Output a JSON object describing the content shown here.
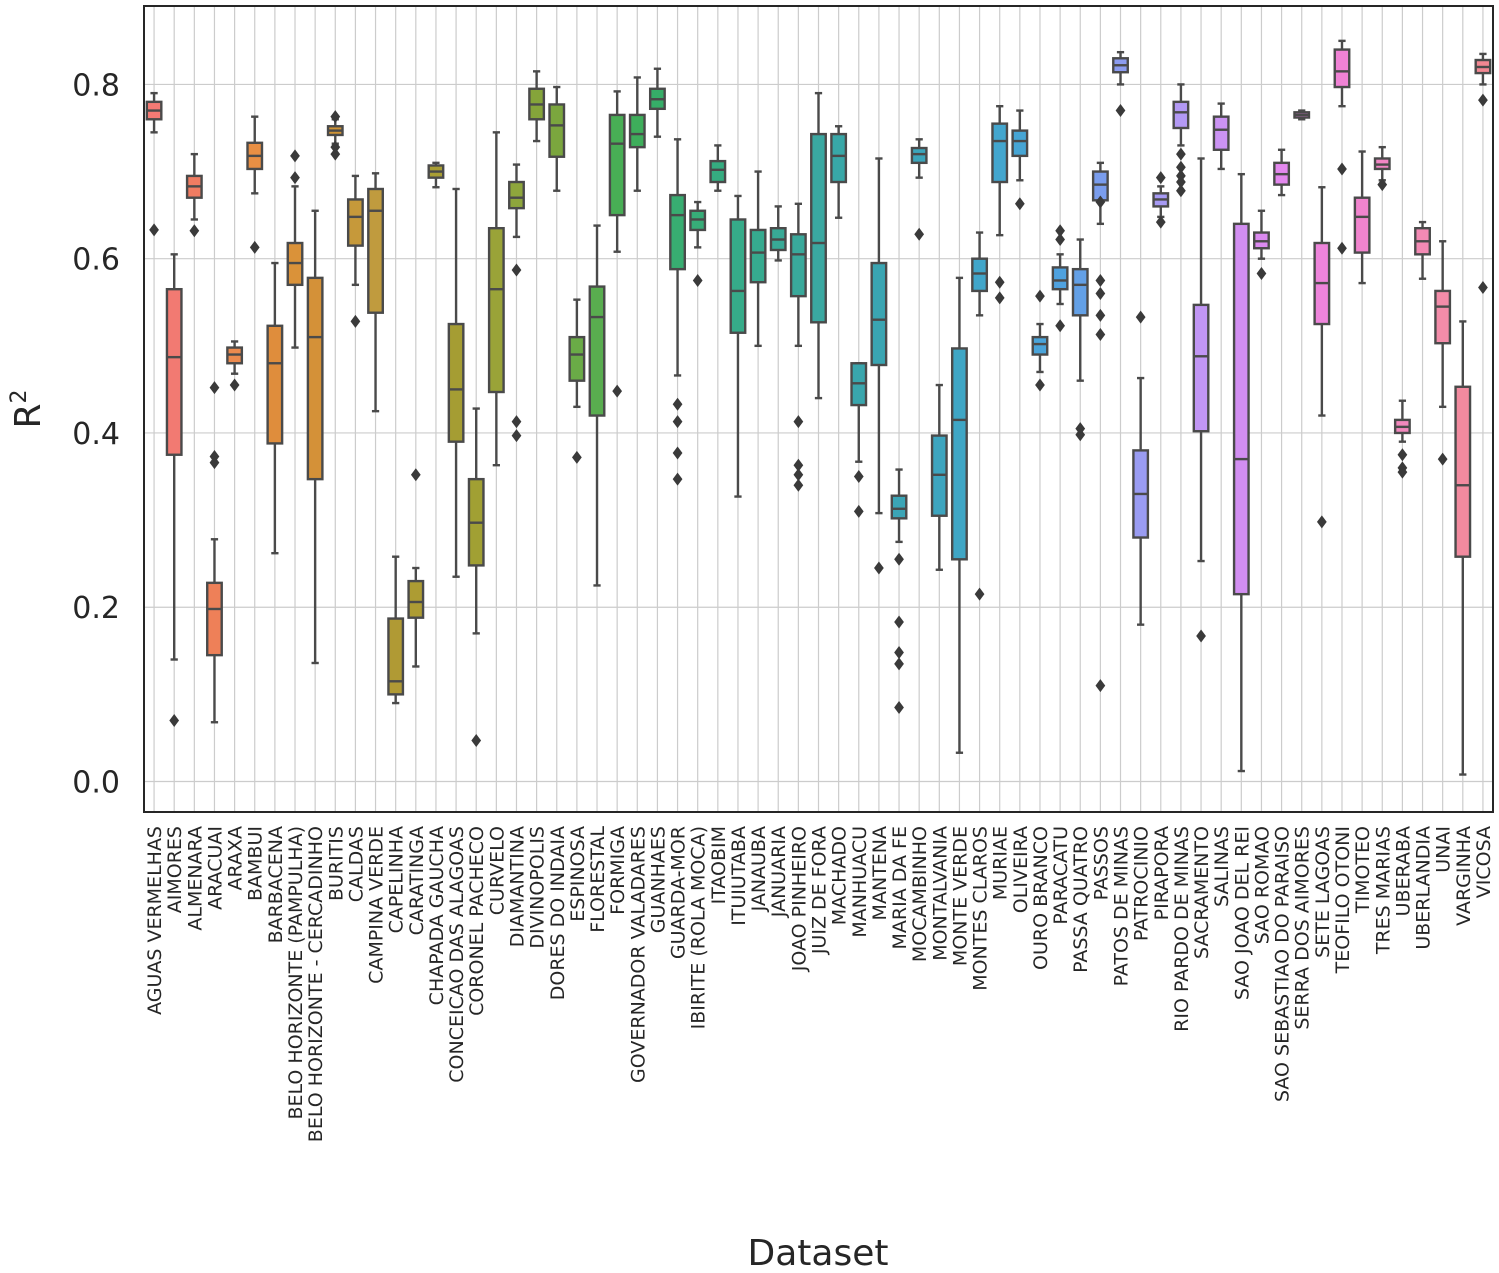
{
  "chart_data": {
    "type": "box",
    "title": "",
    "xlabel": "Dataset",
    "ylabel": "R",
    "ylabel_superscript": "2",
    "ylim": [
      -0.035,
      0.89
    ],
    "yticks": [
      "0.0",
      "0.2",
      "0.4",
      "0.6",
      "0.8"
    ],
    "grid": true,
    "categories": [
      {
        "name": "AGUAS VERMELHAS",
        "color": "#f47a74",
        "q1": 0.76,
        "median": 0.77,
        "q3": 0.78,
        "whislo": 0.745,
        "whishi": 0.79,
        "fliers": [
          0.633
        ]
      },
      {
        "name": "AIMORES",
        "color": "#f27a72",
        "q1": 0.375,
        "median": 0.487,
        "q3": 0.565,
        "whislo": 0.14,
        "whishi": 0.605,
        "fliers": [
          0.07
        ]
      },
      {
        "name": "ALMENARA",
        "color": "#f07c62",
        "q1": 0.67,
        "median": 0.683,
        "q3": 0.695,
        "whislo": 0.645,
        "whishi": 0.72,
        "fliers": [
          0.632
        ]
      },
      {
        "name": "ARACUAI",
        "color": "#ee8058",
        "q1": 0.145,
        "median": 0.198,
        "q3": 0.228,
        "whislo": 0.068,
        "whishi": 0.278,
        "fliers": [
          0.452,
          0.373,
          0.366
        ]
      },
      {
        "name": "ARAXA",
        "color": "#ec8a4e",
        "q1": 0.48,
        "median": 0.49,
        "q3": 0.498,
        "whislo": 0.468,
        "whishi": 0.505,
        "fliers": [
          0.455
        ]
      },
      {
        "name": "BAMBUI",
        "color": "#e88f44",
        "q1": 0.703,
        "median": 0.718,
        "q3": 0.733,
        "whislo": 0.675,
        "whishi": 0.763,
        "fliers": [
          0.613
        ]
      },
      {
        "name": "BARBACENA",
        "color": "#df8d3c",
        "q1": 0.388,
        "median": 0.48,
        "q3": 0.523,
        "whislo": 0.262,
        "whishi": 0.595,
        "fliers": []
      },
      {
        "name": "BELO HORIZONTE (PAMPULHA)",
        "color": "#da9239",
        "q1": 0.57,
        "median": 0.595,
        "q3": 0.618,
        "whislo": 0.498,
        "whishi": 0.683,
        "fliers": [
          0.718,
          0.693
        ]
      },
      {
        "name": "BELO HORIZONTE - CERCADINHO",
        "color": "#d49138",
        "q1": 0.347,
        "median": 0.51,
        "q3": 0.578,
        "whislo": 0.136,
        "whishi": 0.655,
        "fliers": []
      },
      {
        "name": "BURITIS",
        "color": "#cf9435",
        "q1": 0.742,
        "median": 0.747,
        "q3": 0.752,
        "whislo": 0.732,
        "whishi": 0.76,
        "fliers": [
          0.763,
          0.728,
          0.72
        ]
      },
      {
        "name": "CALDAS",
        "color": "#c6993a",
        "q1": 0.615,
        "median": 0.648,
        "q3": 0.668,
        "whislo": 0.57,
        "whishi": 0.695,
        "fliers": [
          0.528
        ]
      },
      {
        "name": "CAMPINA VERDE",
        "color": "#c09b3e",
        "q1": 0.538,
        "median": 0.655,
        "q3": 0.68,
        "whislo": 0.425,
        "whishi": 0.698,
        "fliers": []
      },
      {
        "name": "CAPELINHA",
        "color": "#b09a34",
        "q1": 0.1,
        "median": 0.115,
        "q3": 0.187,
        "whislo": 0.09,
        "whishi": 0.258,
        "fliers": []
      },
      {
        "name": "CARATINGA",
        "color": "#ad9c33",
        "q1": 0.188,
        "median": 0.206,
        "q3": 0.23,
        "whislo": 0.132,
        "whishi": 0.245,
        "fliers": [
          0.352
        ]
      },
      {
        "name": "CHAPADA GAUCHA",
        "color": "#a99e34",
        "q1": 0.693,
        "median": 0.7,
        "q3": 0.707,
        "whislo": 0.682,
        "whishi": 0.71,
        "fliers": []
      },
      {
        "name": "CONCEICAO DAS ALAGOAS",
        "color": "#a59d33",
        "q1": 0.39,
        "median": 0.45,
        "q3": 0.525,
        "whislo": 0.235,
        "whishi": 0.68,
        "fliers": []
      },
      {
        "name": "CORONEL PACHECO",
        "color": "#a1a033",
        "q1": 0.248,
        "median": 0.297,
        "q3": 0.347,
        "whislo": 0.17,
        "whishi": 0.428,
        "fliers": [
          0.047
        ]
      },
      {
        "name": "CURVELO",
        "color": "#9aa338",
        "q1": 0.447,
        "median": 0.565,
        "q3": 0.635,
        "whislo": 0.363,
        "whishi": 0.745,
        "fliers": []
      },
      {
        "name": "DIAMANTINA",
        "color": "#8ea63c",
        "q1": 0.658,
        "median": 0.67,
        "q3": 0.688,
        "whislo": 0.625,
        "whishi": 0.708,
        "fliers": [
          0.587,
          0.413,
          0.397
        ]
      },
      {
        "name": "DIVINOPOLIS",
        "color": "#85a43a",
        "q1": 0.76,
        "median": 0.777,
        "q3": 0.795,
        "whislo": 0.735,
        "whishi": 0.815,
        "fliers": []
      },
      {
        "name": "DORES DO INDAIA",
        "color": "#7ba63e",
        "q1": 0.717,
        "median": 0.753,
        "q3": 0.777,
        "whislo": 0.678,
        "whishi": 0.797,
        "fliers": []
      },
      {
        "name": "ESPINOSA",
        "color": "#6aab47",
        "q1": 0.46,
        "median": 0.49,
        "q3": 0.51,
        "whislo": 0.43,
        "whishi": 0.553,
        "fliers": [
          0.372
        ]
      },
      {
        "name": "FLORESTAL",
        "color": "#59ad4f",
        "q1": 0.42,
        "median": 0.533,
        "q3": 0.568,
        "whislo": 0.225,
        "whishi": 0.638,
        "fliers": []
      },
      {
        "name": "FORMIGA",
        "color": "#48ae55",
        "q1": 0.65,
        "median": 0.732,
        "q3": 0.765,
        "whislo": 0.608,
        "whishi": 0.792,
        "fliers": [
          0.448
        ]
      },
      {
        "name": "GOVERNADOR VALADARES",
        "color": "#3eae5b",
        "q1": 0.728,
        "median": 0.743,
        "q3": 0.765,
        "whislo": 0.678,
        "whishi": 0.808,
        "fliers": []
      },
      {
        "name": "GUANHAES",
        "color": "#36ad68",
        "q1": 0.772,
        "median": 0.783,
        "q3": 0.795,
        "whislo": 0.74,
        "whishi": 0.818,
        "fliers": []
      },
      {
        "name": "GUARDA-MOR",
        "color": "#38ad71",
        "q1": 0.588,
        "median": 0.65,
        "q3": 0.673,
        "whislo": 0.466,
        "whishi": 0.737,
        "fliers": [
          0.433,
          0.413,
          0.377,
          0.347
        ]
      },
      {
        "name": "IBIRITE (ROLA MOCA)",
        "color": "#37ac78",
        "q1": 0.633,
        "median": 0.645,
        "q3": 0.655,
        "whislo": 0.613,
        "whishi": 0.665,
        "fliers": [
          0.575
        ]
      },
      {
        "name": "ITAOBIM",
        "color": "#35ac80",
        "q1": 0.688,
        "median": 0.702,
        "q3": 0.712,
        "whislo": 0.678,
        "whishi": 0.73,
        "fliers": []
      },
      {
        "name": "ITUIUTABA",
        "color": "#36ab89",
        "q1": 0.515,
        "median": 0.563,
        "q3": 0.645,
        "whislo": 0.327,
        "whishi": 0.672,
        "fliers": []
      },
      {
        "name": "JANAUBA",
        "color": "#36aa8f",
        "q1": 0.573,
        "median": 0.607,
        "q3": 0.633,
        "whislo": 0.5,
        "whishi": 0.7,
        "fliers": []
      },
      {
        "name": "JANUARIA",
        "color": "#38a996",
        "q1": 0.61,
        "median": 0.622,
        "q3": 0.635,
        "whislo": 0.598,
        "whishi": 0.66,
        "fliers": []
      },
      {
        "name": "JOAO PINHEIRO",
        "color": "#39a99b",
        "q1": 0.557,
        "median": 0.605,
        "q3": 0.628,
        "whislo": 0.5,
        "whishi": 0.663,
        "fliers": [
          0.413,
          0.363,
          0.352,
          0.34
        ]
      },
      {
        "name": "JUIZ DE FORA",
        "color": "#3aa8a1",
        "q1": 0.527,
        "median": 0.618,
        "q3": 0.743,
        "whislo": 0.44,
        "whishi": 0.79,
        "fliers": []
      },
      {
        "name": "MACHADO",
        "color": "#38a7a7",
        "q1": 0.688,
        "median": 0.718,
        "q3": 0.743,
        "whislo": 0.647,
        "whishi": 0.752,
        "fliers": []
      },
      {
        "name": "MANHUACU",
        "color": "#39a6ad",
        "q1": 0.432,
        "median": 0.457,
        "q3": 0.48,
        "whislo": 0.367,
        "whishi": 0.48,
        "fliers": [
          0.35,
          0.31
        ]
      },
      {
        "name": "MANTENA",
        "color": "#3aa5b2",
        "q1": 0.478,
        "median": 0.53,
        "q3": 0.595,
        "whislo": 0.308,
        "whishi": 0.715,
        "fliers": [
          0.245
        ]
      },
      {
        "name": "MARIA DA FE",
        "color": "#3ba5b6",
        "q1": 0.302,
        "median": 0.313,
        "q3": 0.328,
        "whislo": 0.275,
        "whishi": 0.358,
        "fliers": [
          0.255,
          0.183,
          0.148,
          0.135,
          0.085
        ]
      },
      {
        "name": "MOCAMBINHO",
        "color": "#3ca5bb",
        "q1": 0.71,
        "median": 0.72,
        "q3": 0.727,
        "whislo": 0.693,
        "whishi": 0.737,
        "fliers": [
          0.628
        ]
      },
      {
        "name": "MONTALVANIA",
        "color": "#3da5bf",
        "q1": 0.305,
        "median": 0.352,
        "q3": 0.397,
        "whislo": 0.243,
        "whishi": 0.455,
        "fliers": []
      },
      {
        "name": "MONTE VERDE",
        "color": "#3fa6c5",
        "q1": 0.255,
        "median": 0.415,
        "q3": 0.497,
        "whislo": 0.033,
        "whishi": 0.578,
        "fliers": []
      },
      {
        "name": "MONTES CLAROS",
        "color": "#41a6ca",
        "q1": 0.563,
        "median": 0.583,
        "q3": 0.6,
        "whislo": 0.535,
        "whishi": 0.63,
        "fliers": [
          0.215
        ]
      },
      {
        "name": "MURIAE",
        "color": "#43a6ce",
        "q1": 0.688,
        "median": 0.735,
        "q3": 0.755,
        "whislo": 0.627,
        "whishi": 0.775,
        "fliers": [
          0.573,
          0.555
        ]
      },
      {
        "name": "OLIVEIRA",
        "color": "#46a5d4",
        "q1": 0.718,
        "median": 0.735,
        "q3": 0.747,
        "whislo": 0.69,
        "whishi": 0.77,
        "fliers": [
          0.663
        ]
      },
      {
        "name": "OURO BRANCO",
        "color": "#4aa4da",
        "q1": 0.49,
        "median": 0.502,
        "q3": 0.51,
        "whislo": 0.47,
        "whishi": 0.525,
        "fliers": [
          0.557,
          0.455
        ]
      },
      {
        "name": "PARACATU",
        "color": "#4fa2df",
        "q1": 0.565,
        "median": 0.575,
        "q3": 0.59,
        "whislo": 0.548,
        "whishi": 0.605,
        "fliers": [
          0.632,
          0.622,
          0.523
        ]
      },
      {
        "name": "PASSA QUATRO",
        "color": "#63a0e6",
        "q1": 0.535,
        "median": 0.57,
        "q3": 0.588,
        "whislo": 0.46,
        "whishi": 0.622,
        "fliers": [
          0.405,
          0.398
        ]
      },
      {
        "name": "PASSOS",
        "color": "#7a9ded",
        "q1": 0.667,
        "median": 0.685,
        "q3": 0.7,
        "whislo": 0.64,
        "whishi": 0.71,
        "fliers": [
          0.665,
          0.575,
          0.56,
          0.535,
          0.513,
          0.11
        ]
      },
      {
        "name": "PATOS DE MINAS",
        "color": "#8c9cf0",
        "q1": 0.814,
        "median": 0.822,
        "q3": 0.83,
        "whislo": 0.8,
        "whishi": 0.837,
        "fliers": [
          0.77
        ]
      },
      {
        "name": "PATROCINIO",
        "color": "#9a9cf2",
        "q1": 0.28,
        "median": 0.33,
        "q3": 0.38,
        "whislo": 0.18,
        "whishi": 0.463,
        "fliers": [
          0.533
        ]
      },
      {
        "name": "PIRAPORA",
        "color": "#a79af4",
        "q1": 0.66,
        "median": 0.668,
        "q3": 0.675,
        "whislo": 0.648,
        "whishi": 0.683,
        "fliers": [
          0.693,
          0.642
        ]
      },
      {
        "name": "RIO PARDO DE MINAS",
        "color": "#b399f4",
        "q1": 0.75,
        "median": 0.768,
        "q3": 0.78,
        "whislo": 0.73,
        "whishi": 0.8,
        "fliers": [
          0.72,
          0.705,
          0.695,
          0.688,
          0.678
        ]
      },
      {
        "name": "SACRAMENTO",
        "color": "#c196f4",
        "q1": 0.402,
        "median": 0.488,
        "q3": 0.547,
        "whislo": 0.253,
        "whishi": 0.715,
        "fliers": [
          0.167
        ]
      },
      {
        "name": "SALINAS",
        "color": "#cb93f3",
        "q1": 0.725,
        "median": 0.748,
        "q3": 0.763,
        "whislo": 0.703,
        "whishi": 0.778,
        "fliers": []
      },
      {
        "name": "SAO JOAO DEL REI",
        "color": "#d28ef1",
        "q1": 0.215,
        "median": 0.37,
        "q3": 0.64,
        "whislo": 0.012,
        "whishi": 0.697,
        "fliers": []
      },
      {
        "name": "SAO ROMAO",
        "color": "#db8af0",
        "q1": 0.612,
        "median": 0.62,
        "q3": 0.63,
        "whislo": 0.6,
        "whishi": 0.655,
        "fliers": [
          0.583
        ]
      },
      {
        "name": "SAO SEBASTIAO DO PARAISO",
        "color": "#e388ee",
        "q1": 0.685,
        "median": 0.697,
        "q3": 0.71,
        "whislo": 0.673,
        "whishi": 0.725,
        "fliers": []
      },
      {
        "name": "SERRA DOS AIMORES",
        "color": "#ea86e6",
        "q1": 0.762,
        "median": 0.765,
        "q3": 0.768,
        "whislo": 0.76,
        "whishi": 0.77,
        "fliers": []
      },
      {
        "name": "SETE LAGOAS",
        "color": "#ee84db",
        "q1": 0.525,
        "median": 0.572,
        "q3": 0.618,
        "whislo": 0.42,
        "whishi": 0.682,
        "fliers": [
          0.298
        ]
      },
      {
        "name": "TEOFILO OTONI",
        "color": "#f082d5",
        "q1": 0.797,
        "median": 0.815,
        "q3": 0.84,
        "whislo": 0.775,
        "whishi": 0.85,
        "fliers": [
          0.703,
          0.612
        ]
      },
      {
        "name": "TIMOTEO",
        "color": "#f184ce",
        "q1": 0.607,
        "median": 0.648,
        "q3": 0.67,
        "whislo": 0.572,
        "whishi": 0.723,
        "fliers": []
      },
      {
        "name": "TRES MARIAS",
        "color": "#f286c5",
        "q1": 0.703,
        "median": 0.708,
        "q3": 0.715,
        "whislo": 0.69,
        "whishi": 0.728,
        "fliers": [
          0.685
        ]
      },
      {
        "name": "UBERABA",
        "color": "#f288bd",
        "q1": 0.4,
        "median": 0.407,
        "q3": 0.415,
        "whislo": 0.39,
        "whishi": 0.437,
        "fliers": [
          0.375,
          0.36,
          0.355
        ]
      },
      {
        "name": "UBERLANDIA",
        "color": "#f38ab4",
        "q1": 0.605,
        "median": 0.62,
        "q3": 0.635,
        "whislo": 0.577,
        "whishi": 0.642,
        "fliers": []
      },
      {
        "name": "UNAI",
        "color": "#f38ca9",
        "q1": 0.503,
        "median": 0.545,
        "q3": 0.563,
        "whislo": 0.43,
        "whishi": 0.62,
        "fliers": [
          0.37
        ]
      },
      {
        "name": "VARGINHA",
        "color": "#f28a9f",
        "q1": 0.258,
        "median": 0.34,
        "q3": 0.453,
        "whislo": 0.008,
        "whishi": 0.528,
        "fliers": []
      },
      {
        "name": "VICOSA",
        "color": "#f28792",
        "q1": 0.813,
        "median": 0.82,
        "q3": 0.828,
        "whislo": 0.8,
        "whishi": 0.835,
        "fliers": [
          0.782,
          0.567
        ]
      }
    ]
  }
}
